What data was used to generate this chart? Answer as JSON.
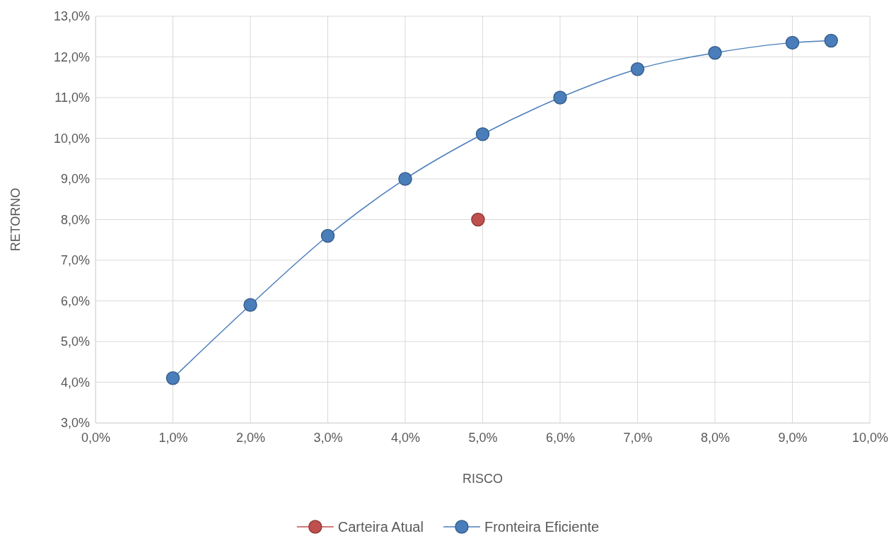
{
  "chart_data": {
    "type": "line",
    "xlabel": "RISCO",
    "ylabel": "RETORNO",
    "xlim": [
      0,
      10
    ],
    "ylim": [
      3,
      13
    ],
    "xticks": [
      {
        "value": 0,
        "label": "0,0%"
      },
      {
        "value": 1,
        "label": "1,0%"
      },
      {
        "value": 2,
        "label": "2,0%"
      },
      {
        "value": 3,
        "label": "3,0%"
      },
      {
        "value": 4,
        "label": "4,0%"
      },
      {
        "value": 5,
        "label": "5,0%"
      },
      {
        "value": 6,
        "label": "6,0%"
      },
      {
        "value": 7,
        "label": "7,0%"
      },
      {
        "value": 8,
        "label": "8,0%"
      },
      {
        "value": 9,
        "label": "9,0%"
      },
      {
        "value": 10,
        "label": "10,0%"
      }
    ],
    "yticks": [
      {
        "value": 3,
        "label": "3,0%"
      },
      {
        "value": 4,
        "label": "4,0%"
      },
      {
        "value": 5,
        "label": "5,0%"
      },
      {
        "value": 6,
        "label": "6,0%"
      },
      {
        "value": 7,
        "label": "7,0%"
      },
      {
        "value": 8,
        "label": "8,0%"
      },
      {
        "value": 9,
        "label": "9,0%"
      },
      {
        "value": 10,
        "label": "10,0%"
      },
      {
        "value": 11,
        "label": "11,0%"
      },
      {
        "value": 12,
        "label": "12,0%"
      },
      {
        "value": 13,
        "label": "13,0%"
      }
    ],
    "grid": true,
    "legend": "bottom",
    "marker": "circle",
    "line_style": "solid",
    "series": [
      {
        "name": "Carteira Atual",
        "color": "#c0504d",
        "x": [
          4.94
        ],
        "values": [
          8.0
        ]
      },
      {
        "name": "Fronteira Eficiente",
        "color": "#4a7ebb",
        "x": [
          1,
          2,
          3,
          4,
          5,
          6,
          7,
          8,
          9,
          9.5
        ],
        "values": [
          4.1,
          5.9,
          7.6,
          9.0,
          10.1,
          11.0,
          11.7,
          12.1,
          12.35,
          12.4
        ]
      }
    ]
  }
}
